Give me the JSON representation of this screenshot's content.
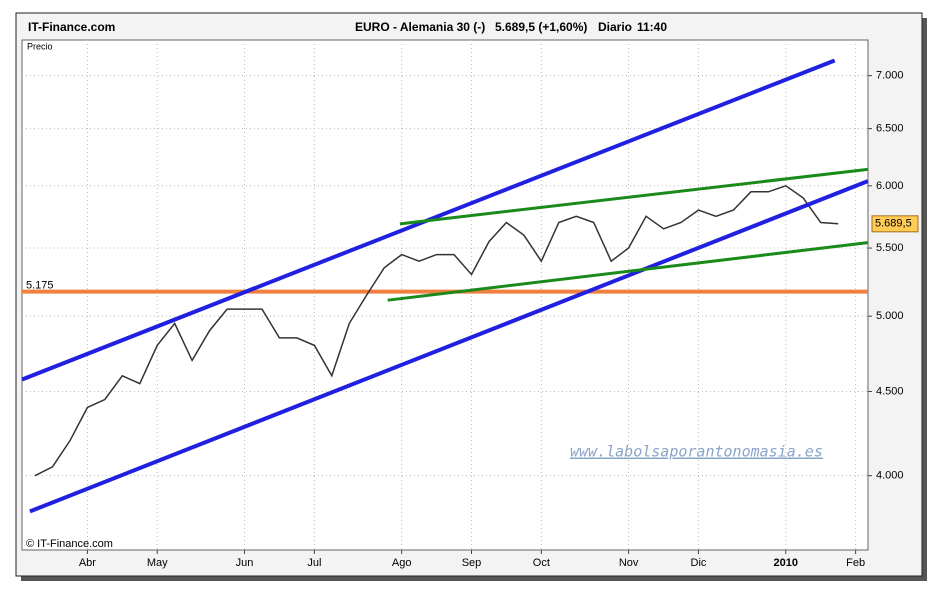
{
  "brand": "IT-Finance.com",
  "chart_data": {
    "type": "line",
    "title": "EURO - Alemania 30 (-)",
    "subtitle": "5.689,5 (+1,60%)",
    "period": "Diario",
    "time": "11:40",
    "y_label": "Precio",
    "copyright": "© IT-Finance.com",
    "watermark": "www.labolsaporantonomasia.es",
    "log_scale": true,
    "grid": true,
    "ylim": [
      3605,
      7358
    ],
    "yticks": [
      {
        "value": 4000,
        "label": "4.000"
      },
      {
        "value": 4500,
        "label": "4.500"
      },
      {
        "value": 5000,
        "label": "5.000"
      },
      {
        "value": 5500,
        "label": "5.500"
      },
      {
        "value": 6000,
        "label": "6.000"
      },
      {
        "value": 6500,
        "label": "6.500"
      },
      {
        "value": 7000,
        "label": "7.000"
      }
    ],
    "categories": [
      null,
      null,
      null,
      "Abr",
      null,
      null,
      null,
      "May",
      null,
      null,
      null,
      null,
      "Jun",
      null,
      null,
      null,
      "Jul",
      null,
      null,
      null,
      null,
      "Ago",
      null,
      null,
      null,
      "Sep",
      null,
      null,
      null,
      "Oct",
      null,
      null,
      null,
      null,
      "Nov",
      null,
      null,
      null,
      "Dic",
      null,
      null,
      null,
      null,
      "2010",
      null,
      null,
      null,
      "Feb"
    ],
    "series": [
      {
        "color": "#333333",
        "values": [
          4000,
          4050,
          4200,
          4400,
          4450,
          4600,
          4550,
          4800,
          4950,
          4700,
          4900,
          5050,
          5050,
          5050,
          4850,
          4850,
          4800,
          4600,
          4950,
          5150,
          5350,
          5450,
          5400,
          5450,
          5450,
          5300,
          5550,
          5700,
          5600,
          5400,
          5700,
          5750,
          5700,
          5400,
          5500,
          5750,
          5650,
          5700,
          5800,
          5750,
          5800,
          5950,
          5950,
          6000,
          5900,
          5700,
          5689.5,
          null
        ]
      }
    ],
    "last_price": {
      "value": 5689.5,
      "label": "5.689,5"
    },
    "level": {
      "value": 5175,
      "label": "5.175",
      "color": "#f08040"
    },
    "trendlines": [
      {
        "color": "#2020e0",
        "from": [
          -0.74,
          4576
        ],
        "to": [
          45.8,
          7150
        ]
      },
      {
        "color": "#2020e0",
        "from": [
          -0.29,
          3805
        ],
        "to": [
          47.7,
          6040
        ]
      },
      {
        "color": "#1a8a1a",
        "from": [
          20.9,
          5689
        ],
        "to": [
          47.7,
          6140
        ]
      },
      {
        "color": "#1a8a1a",
        "from": [
          20.2,
          5113
        ],
        "to": [
          47.7,
          5542
        ]
      }
    ]
  }
}
